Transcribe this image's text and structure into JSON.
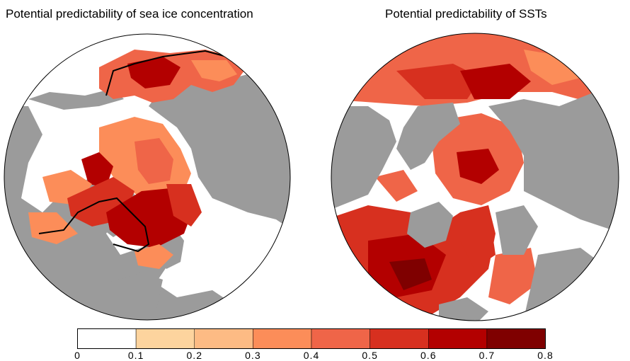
{
  "panels": [
    {
      "title": "Potential predictability of sea ice concentration"
    },
    {
      "title": "Potential predictability of SSTs"
    }
  ],
  "colorbar": {
    "ticks": [
      "0",
      "0.1",
      "0.2",
      "0.3",
      "0.4",
      "0.5",
      "0.6",
      "0.7",
      "0.8"
    ],
    "colors": [
      "#ffffff",
      "#fdd49e",
      "#fdbb84",
      "#fc8d59",
      "#ef6548",
      "#d7301f",
      "#b30000",
      "#7f0000"
    ]
  },
  "colors": {
    "land": "#9b9b9b",
    "ocean_none": "#ffffff",
    "contour": "#000000"
  }
}
